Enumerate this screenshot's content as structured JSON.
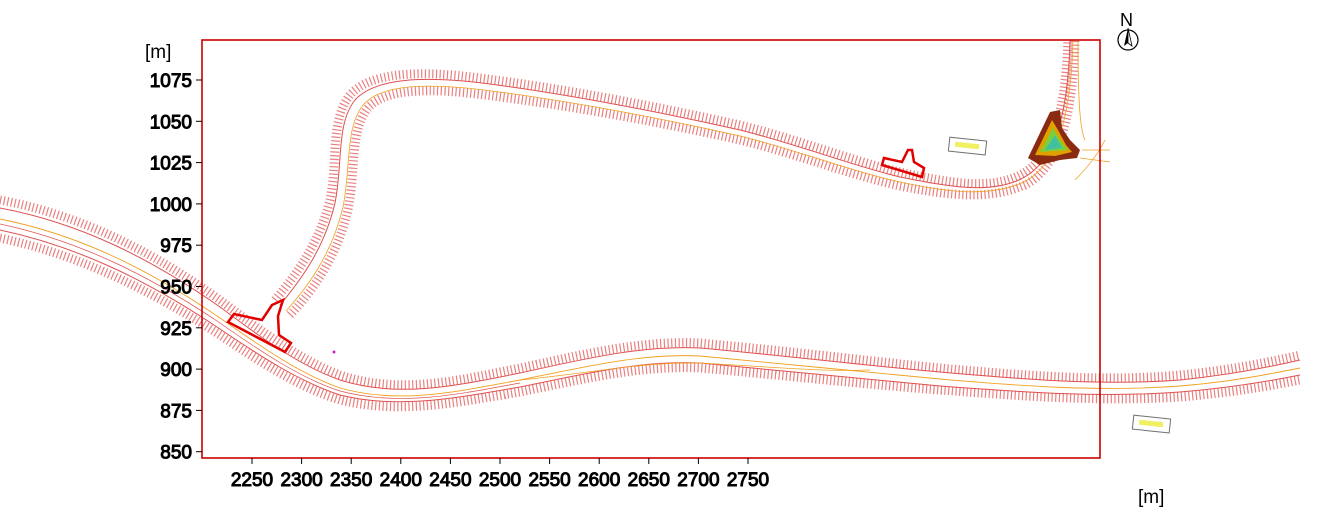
{
  "map": {
    "north_label": "N",
    "x_unit": "[m]",
    "y_unit": "[m]",
    "x_ticks": [
      "2250",
      "2300",
      "2350",
      "2400",
      "2450",
      "2500",
      "2550",
      "2600",
      "2650",
      "2700",
      "2750"
    ],
    "y_ticks": [
      "1075",
      "1050",
      "1025",
      "1000",
      "975",
      "950",
      "925",
      "900",
      "875",
      "850"
    ],
    "colors": {
      "frame": "#cc0000",
      "edge_line": "#e05050",
      "center_line": "#f0a020",
      "curb_hatch": "#e88080",
      "island_outline": "#e00000",
      "roundabout_fill": "#7ccf3a",
      "roundabout_inner": "#e0a000",
      "roundabout_dark": "#8a2a10"
    },
    "icons": [
      "north-arrow-icon",
      "sign-plate-icon"
    ]
  }
}
